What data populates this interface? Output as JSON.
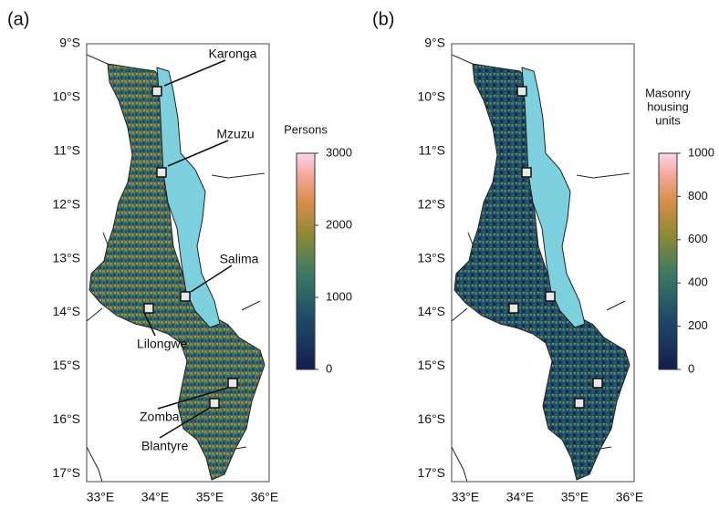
{
  "panels": [
    {
      "label": "(a)",
      "lat_ticks": [
        "9°S",
        "10°S",
        "11°S",
        "12°S",
        "13°S",
        "14°S",
        "15°S",
        "16°S",
        "17°S"
      ],
      "lon_ticks": [
        "33°E",
        "34°E",
        "35°E",
        "36°E"
      ],
      "cities": [
        "Karonga",
        "Mzuzu",
        "Salima",
        "Lilongwe",
        "Zomba",
        "Blantyre"
      ],
      "colorbar": {
        "title": [
          "Persons"
        ],
        "lim": [
          0,
          3000
        ],
        "ticks": [
          0,
          1000,
          2000,
          3000
        ]
      }
    },
    {
      "label": "(b)",
      "lat_ticks": [
        "9°S",
        "10°S",
        "11°S",
        "12°S",
        "13°S",
        "14°S",
        "15°S",
        "16°S",
        "17°S"
      ],
      "lon_ticks": [
        "33°E",
        "34°E",
        "35°E",
        "36°E"
      ],
      "colorbar": {
        "title": [
          "Masonry",
          "housing",
          "units"
        ],
        "lim": [
          0,
          1000
        ],
        "ticks": [
          0,
          200,
          400,
          600,
          800,
          1000
        ]
      }
    }
  ]
}
